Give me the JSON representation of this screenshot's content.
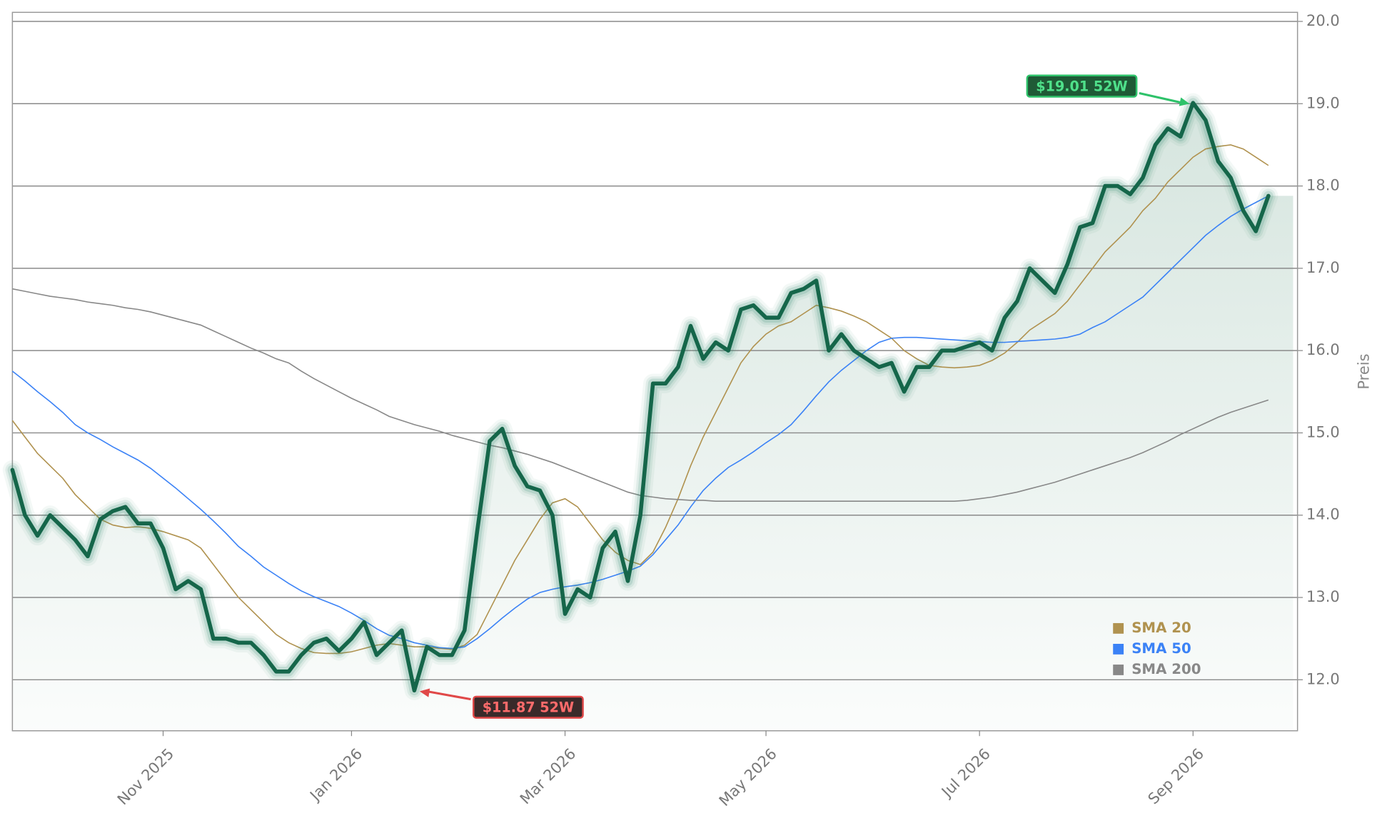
{
  "chart_data": {
    "type": "line",
    "y_label": "Preis",
    "categories": [
      null,
      null,
      null,
      null,
      null,
      null,
      null,
      null,
      null,
      null,
      null,
      null,
      "Nov 2025",
      null,
      null,
      null,
      null,
      null,
      null,
      null,
      null,
      null,
      null,
      null,
      null,
      null,
      null,
      "Jan 2026",
      null,
      null,
      null,
      null,
      null,
      null,
      null,
      null,
      null,
      null,
      null,
      null,
      null,
      null,
      null,
      null,
      "Mar 2026",
      null,
      null,
      null,
      null,
      null,
      null,
      null,
      null,
      null,
      null,
      null,
      null,
      null,
      null,
      null,
      "May 2026",
      null,
      null,
      null,
      null,
      null,
      null,
      null,
      null,
      null,
      null,
      null,
      null,
      null,
      null,
      null,
      null,
      "Jul 2026",
      null,
      null,
      null,
      null,
      null,
      null,
      null,
      null,
      null,
      null,
      null,
      null,
      null,
      null,
      null,
      null,
      "Sep 2026",
      null,
      null,
      null,
      null,
      null,
      null
    ],
    "values": [
      14.55,
      14.0,
      13.75,
      14.0,
      13.85,
      13.7,
      13.5,
      13.95,
      14.05,
      14.1,
      13.9,
      13.9,
      13.6,
      13.1,
      13.2,
      13.1,
      12.5,
      12.5,
      12.45,
      12.45,
      12.3,
      12.1,
      12.1,
      12.3,
      12.45,
      12.5,
      12.35,
      12.5,
      12.7,
      12.3,
      12.45,
      12.6,
      11.87,
      12.4,
      12.3,
      12.3,
      12.6,
      13.8,
      14.9,
      15.05,
      14.6,
      14.35,
      14.3,
      14.0,
      12.8,
      13.1,
      13.0,
      13.6,
      13.8,
      13.2,
      14.0,
      15.6,
      15.6,
      15.8,
      16.3,
      15.9,
      16.1,
      16.0,
      16.5,
      16.55,
      16.4,
      16.4,
      16.7,
      16.75,
      16.85,
      16.0,
      16.2,
      16.0,
      15.9,
      15.8,
      15.85,
      15.5,
      15.8,
      15.8,
      16.0,
      16.0,
      16.05,
      16.1,
      16.0,
      16.4,
      16.6,
      17.0,
      16.85,
      16.7,
      17.05,
      17.5,
      17.55,
      18.0,
      18.0,
      17.9,
      18.1,
      18.5,
      18.7,
      18.6,
      19.01,
      18.8,
      18.3,
      18.1,
      17.7,
      17.45,
      17.88
    ],
    "color": "#15664a",
    "high_label": "$19.01 52W",
    "low_label": "$11.87 52W",
    "series": [
      {
        "name": "SMA 20",
        "color": "#b0924f",
        "values": [
          15.15,
          14.95,
          14.75,
          14.6,
          14.45,
          14.25,
          14.1,
          13.95,
          13.88,
          13.85,
          13.86,
          13.84,
          13.8,
          13.75,
          13.7,
          13.6,
          13.4,
          13.2,
          13.0,
          12.85,
          12.7,
          12.55,
          12.45,
          12.38,
          12.33,
          12.32,
          12.32,
          12.34,
          12.38,
          12.42,
          12.44,
          12.42,
          12.4,
          12.4,
          12.38,
          12.37,
          12.42,
          12.55,
          12.85,
          13.15,
          13.45,
          13.7,
          13.95,
          14.15,
          14.2,
          14.1,
          13.9,
          13.7,
          13.55,
          13.45,
          13.4,
          13.55,
          13.85,
          14.2,
          14.6,
          14.95,
          15.25,
          15.55,
          15.85,
          16.05,
          16.2,
          16.3,
          16.35,
          16.45,
          16.55,
          16.52,
          16.48,
          16.42,
          16.35,
          16.25,
          16.15,
          16.0,
          15.9,
          15.82,
          15.8,
          15.79,
          15.8,
          15.82,
          15.88,
          15.97,
          16.1,
          16.25,
          16.35,
          16.45,
          16.6,
          16.8,
          17.0,
          17.2,
          17.35,
          17.5,
          17.7,
          17.85,
          18.05,
          18.2,
          18.35,
          18.45,
          18.48,
          18.5,
          18.45,
          18.35,
          18.25
        ]
      },
      {
        "name": "SMA 50",
        "color": "#3b82f6",
        "values": [
          15.75,
          15.63,
          15.5,
          15.38,
          15.25,
          15.1,
          15.0,
          14.92,
          14.83,
          14.75,
          14.67,
          14.57,
          14.45,
          14.33,
          14.2,
          14.07,
          13.93,
          13.78,
          13.62,
          13.5,
          13.37,
          13.27,
          13.17,
          13.08,
          13.01,
          12.95,
          12.89,
          12.81,
          12.72,
          12.62,
          12.54,
          12.5,
          12.45,
          12.42,
          12.39,
          12.38,
          12.4,
          12.5,
          12.62,
          12.75,
          12.87,
          12.98,
          13.06,
          13.1,
          13.13,
          13.15,
          13.18,
          13.22,
          13.27,
          13.32,
          13.38,
          13.52,
          13.7,
          13.88,
          14.1,
          14.3,
          14.45,
          14.58,
          14.67,
          14.77,
          14.88,
          14.98,
          15.1,
          15.27,
          15.45,
          15.62,
          15.76,
          15.88,
          16.0,
          16.1,
          16.15,
          16.16,
          16.16,
          16.15,
          16.14,
          16.13,
          16.12,
          16.11,
          16.1,
          16.1,
          16.11,
          16.12,
          16.13,
          16.14,
          16.16,
          16.2,
          16.28,
          16.35,
          16.45,
          16.55,
          16.65,
          16.8,
          16.95,
          17.1,
          17.25,
          17.4,
          17.52,
          17.63,
          17.72,
          17.8,
          17.88
        ]
      },
      {
        "name": "SMA 200",
        "color": "#888888",
        "values": [
          16.75,
          16.72,
          16.69,
          16.66,
          16.64,
          16.62,
          16.59,
          16.57,
          16.55,
          16.52,
          16.5,
          16.47,
          16.43,
          16.39,
          16.35,
          16.31,
          16.24,
          16.17,
          16.1,
          16.03,
          15.97,
          15.9,
          15.85,
          15.75,
          15.66,
          15.58,
          15.5,
          15.42,
          15.35,
          15.28,
          15.2,
          15.15,
          15.1,
          15.06,
          15.02,
          14.97,
          14.93,
          14.89,
          14.85,
          14.82,
          14.78,
          14.74,
          14.69,
          14.64,
          14.58,
          14.52,
          14.46,
          14.4,
          14.34,
          14.28,
          14.24,
          14.22,
          14.2,
          14.19,
          14.18,
          14.18,
          14.17,
          14.17,
          14.17,
          14.17,
          14.17,
          14.17,
          14.17,
          14.17,
          14.17,
          14.17,
          14.17,
          14.17,
          14.17,
          14.17,
          14.17,
          14.17,
          14.17,
          14.17,
          14.17,
          14.17,
          14.18,
          14.2,
          14.22,
          14.25,
          14.28,
          14.32,
          14.36,
          14.4,
          14.45,
          14.5,
          14.55,
          14.6,
          14.65,
          14.7,
          14.76,
          14.83,
          14.9,
          14.98,
          15.05,
          15.12,
          15.19,
          15.25,
          15.3,
          15.35,
          15.4
        ]
      }
    ],
    "ylim": [
      11.38,
      20.11
    ],
    "yticks": [
      {
        "value": 12,
        "label": "12.0"
      },
      {
        "value": 13,
        "label": "13.0"
      },
      {
        "value": 14,
        "label": "14.0"
      },
      {
        "value": 15,
        "label": "15.0"
      },
      {
        "value": 16,
        "label": "16.0"
      },
      {
        "value": 17,
        "label": "17.0"
      },
      {
        "value": 18,
        "label": "18.0"
      },
      {
        "value": 19,
        "label": "19.0"
      },
      {
        "value": 20,
        "label": "20.0"
      }
    ],
    "grid": true,
    "legend": "lower right"
  }
}
